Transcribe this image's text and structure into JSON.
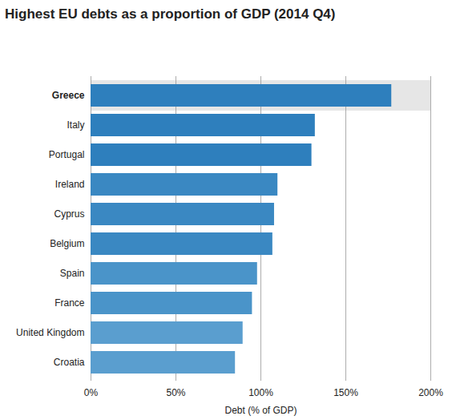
{
  "chart_data": {
    "type": "bar",
    "orientation": "horizontal",
    "title": "Highest EU debts as a proportion of GDP (2014 Q4)",
    "x_label": "Debt (% of GDP)",
    "categories": [
      "Greece",
      "Italy",
      "Portugal",
      "Ireland",
      "Cyprus",
      "Belgium",
      "Spain",
      "France",
      "United Kingdom",
      "Croatia"
    ],
    "values": [
      177,
      132,
      130,
      110,
      108,
      107,
      98,
      95,
      89.5,
      85
    ],
    "colors": [
      "#2e7fbd",
      "#2e7fbd",
      "#2e7fbd",
      "#3a88c2",
      "#3a88c2",
      "#3a88c2",
      "#4a94c9",
      "#4a94c9",
      "#5a9ecf",
      "#5a9ecf"
    ],
    "xlim": [
      0,
      200
    ],
    "xticks": [
      {
        "value": 0,
        "label": "0%"
      },
      {
        "value": 50,
        "label": "50%"
      },
      {
        "value": 100,
        "label": "100%"
      },
      {
        "value": 150,
        "label": "150%"
      },
      {
        "value": 200,
        "label": "200%"
      }
    ],
    "grid": true,
    "data_labels": false
  }
}
